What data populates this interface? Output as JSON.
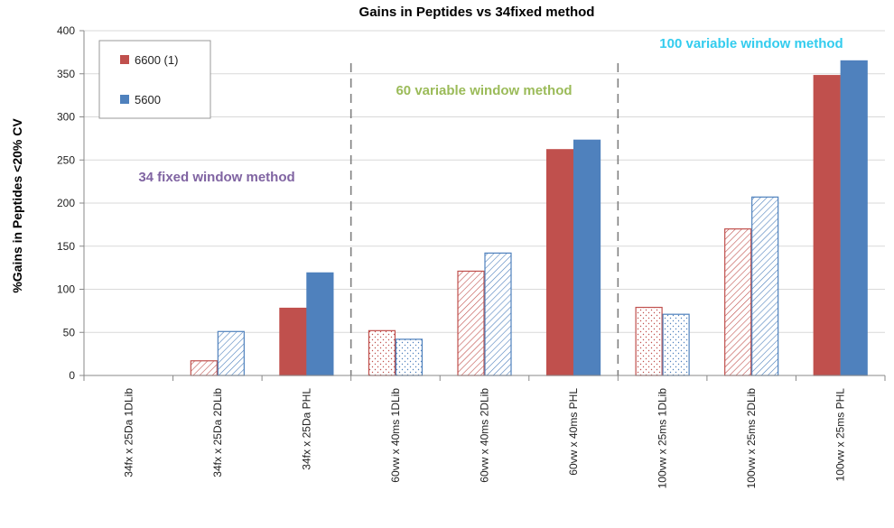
{
  "chart_data": {
    "type": "bar",
    "title": "Gains in Peptides vs 34fixed method",
    "xlabel": "",
    "ylabel": "%Gains in Peptides <20% CV",
    "ylim": [
      0,
      400
    ],
    "yticks": [
      0,
      50,
      100,
      150,
      200,
      250,
      300,
      350,
      400
    ],
    "categories": [
      "34fx x 25Da 1DLib",
      "34fx x 25Da 2DLib",
      "34fx x 25Da PHL",
      "60vw x 40ms 1DLib",
      "60vw x 40ms 2DLib",
      "60vw x 40ms PHL",
      "100vw x 25ms 1DLib",
      "100vw x 25ms 2DLib",
      "100vw x 25ms PHL"
    ],
    "bar_fill_patterns": [
      "none",
      "hatch",
      "solid",
      "dots",
      "hatch",
      "solid",
      "dots",
      "hatch",
      "solid"
    ],
    "series": [
      {
        "name": "6600 (1)",
        "color": "#C0504D",
        "values": [
          0,
          17,
          78,
          52,
          121,
          262,
          79,
          170,
          348
        ]
      },
      {
        "name": "5600",
        "color": "#4F81BD",
        "values": [
          0,
          51,
          119,
          42,
          142,
          273,
          71,
          207,
          365
        ]
      }
    ],
    "group_separators_after_category": [
      2,
      5
    ],
    "annotations": [
      {
        "text": "34 fixed window method",
        "color": "#8064A2"
      },
      {
        "text": "60 variable window method",
        "color": "#9BBB59"
      },
      {
        "text": "100 variable window method",
        "color": "#33CCEE"
      }
    ],
    "legend_position": "top-left"
  }
}
